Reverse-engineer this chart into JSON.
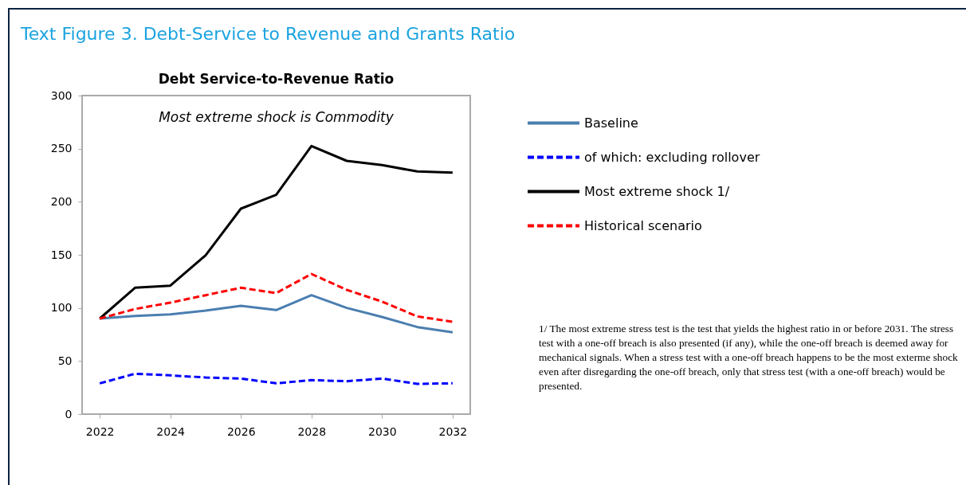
{
  "chart_data": {
    "type": "line",
    "title": "Text Figure 3. Debt-Service to Revenue and Grants Ratio",
    "subtitle": "Debt Service-to-Revenue Ratio",
    "annotations": [
      "Most extreme shock is Commodity",
      "1/ The most extreme stress test is the test that yields the highest ratio in or before 2031. The stress test with a one-off breach is also presented (if any), while the one-off breach is deemed away for mechanical signals. When a stress test with a one-off breach happens to be the most exterme shock even after disregarding the one-off breach, only that stress test (with a one-off breach) would be presented."
    ],
    "x": [
      2022,
      2023,
      2024,
      2025,
      2026,
      2027,
      2028,
      2029,
      2030,
      2031,
      2032
    ],
    "series": [
      {
        "name": "Baseline",
        "color": "#4a7eb0",
        "line_style": "solid",
        "values": [
          90,
          92.5,
          94,
          97.5,
          102,
          98,
          112,
          100,
          91.5,
          82,
          77
        ]
      },
      {
        "name": "of which: excluding rollover",
        "color": "#0000ff",
        "line_style": "dashed",
        "values": [
          29,
          38,
          36.5,
          34.5,
          33.5,
          29,
          32,
          31,
          33.5,
          28.5,
          29
        ]
      },
      {
        "name": "Most extreme shock 1/",
        "color": "#000000",
        "line_style": "solid",
        "values": [
          90,
          119,
          121,
          149.5,
          193.5,
          206.5,
          252.5,
          238.5,
          234.5,
          228.5,
          227.5
        ]
      },
      {
        "name": "Historical scenario",
        "color": "#ff0000",
        "line_style": "dashed",
        "values": [
          90,
          99,
          105,
          112,
          119,
          114,
          132,
          117,
          106,
          92,
          87
        ]
      }
    ],
    "xlim": [
      2021.5,
      2032.5
    ],
    "xticks": [
      2022,
      2024,
      2026,
      2028,
      2030,
      2032
    ],
    "ylim": [
      0,
      300
    ],
    "yticks": [
      0,
      50,
      100,
      150,
      200,
      250,
      300
    ],
    "legend": "right"
  }
}
